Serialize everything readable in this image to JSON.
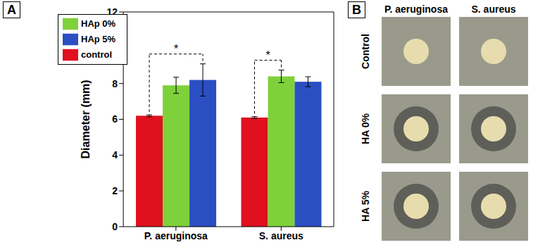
{
  "chart_data": {
    "type": "bar",
    "title": "A",
    "y_label": "Diameter (mm)",
    "categories": [
      "P. aeruginosa",
      "S. aureus"
    ],
    "series": [
      {
        "name": "control",
        "color": "#e0101e",
        "values": [
          6.2,
          6.1
        ],
        "errors": [
          0.05,
          0.05
        ]
      },
      {
        "name": "HAp 0%",
        "color": "#7fd13b",
        "values": [
          7.9,
          8.4
        ],
        "errors": [
          0.45,
          0.35
        ]
      },
      {
        "name": "HAp 5%",
        "color": "#2b4fc2",
        "values": [
          8.2,
          8.1
        ],
        "errors": [
          0.9,
          0.28
        ]
      }
    ],
    "ylim": [
      0,
      12
    ],
    "yticks": [
      0,
      2,
      4,
      6,
      8,
      10,
      12
    ],
    "grid": false,
    "legend": "upper left",
    "annotations": [
      {
        "text": "*",
        "category": "P. aeruginosa",
        "from": "control",
        "to": "HAp 5%"
      },
      {
        "text": "*",
        "category": "S. aureus",
        "from": "control",
        "to": "HAp 0%"
      }
    ]
  },
  "photo_panel": {
    "label": "B",
    "columns": [
      "P. aeruginosa",
      "S. aureus"
    ],
    "rows": [
      "Control",
      "HA 0%",
      "HA 5%"
    ]
  }
}
